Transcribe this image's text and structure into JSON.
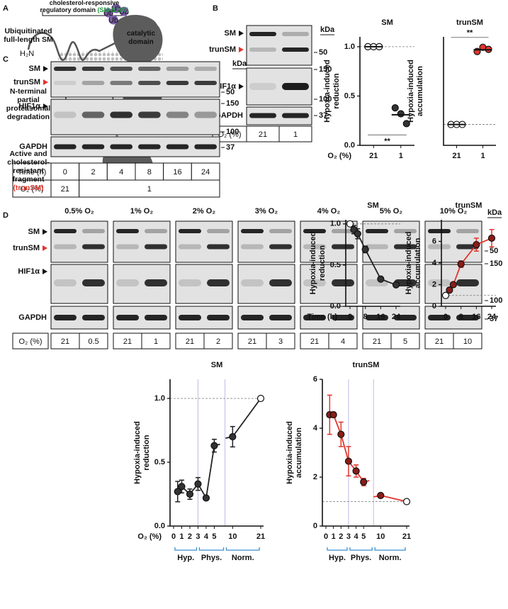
{
  "panels": {
    "A": {
      "letter": "A",
      "domain_label": "cholesterol-responsive regulatory domain",
      "domain_tag": "(SM-N100)",
      "catalytic": "catalytic domain",
      "steps": [
        "Ubiquitinated full-length SM",
        "N-terminal partial proteasomal degradation",
        "Active and cholesterol-resistant fragment"
      ],
      "fragment_tag": "(trunSM)",
      "nterm": "H₂N",
      "ub": "Ub"
    },
    "B": {
      "letter": "B",
      "bands": [
        "SM",
        "trunSM",
        "HIF1α",
        "GAPDH"
      ],
      "kda": "kDa",
      "markers": [
        "50",
        "150",
        "100",
        "37"
      ],
      "o2_label": "O₂ (%)",
      "lanes": [
        "21",
        "1"
      ]
    },
    "C": {
      "letter": "C",
      "bands": [
        "SM",
        "trunSM",
        "HIF1α",
        "GAPDH"
      ],
      "kda": "kDa",
      "markers": [
        "50",
        "150",
        "100",
        "37"
      ],
      "time_label": "Time (h)",
      "times": [
        "0",
        "2",
        "4",
        "8",
        "16",
        "24"
      ],
      "o2_label": "O₂ (%)",
      "o2_values": [
        "21",
        "1"
      ]
    },
    "D": {
      "letter": "D",
      "bands": [
        "SM",
        "trunSM",
        "HIF1α",
        "GAPDH"
      ],
      "kda": "kDa",
      "markers": [
        "50",
        "150",
        "100",
        "37"
      ],
      "o2_label": "O₂ (%)",
      "groups": [
        {
          "header": "0.5% O₂",
          "lanes": [
            "21",
            "0.5"
          ]
        },
        {
          "header": "1% O₂",
          "lanes": [
            "21",
            "1"
          ]
        },
        {
          "header": "2% O₂",
          "lanes": [
            "21",
            "2"
          ]
        },
        {
          "header": "3% O₂",
          "lanes": [
            "21",
            "3"
          ]
        },
        {
          "header": "4% O₂",
          "lanes": [
            "21",
            "4"
          ]
        },
        {
          "header": "5% O₂",
          "lanes": [
            "21",
            "5"
          ]
        },
        {
          "header": "10% O₂",
          "lanes": [
            "21",
            "10"
          ]
        }
      ]
    }
  },
  "chart_data": [
    {
      "type": "dot",
      "title": "SM",
      "ylabel": [
        "Hypoxia-induced",
        "reduction"
      ],
      "xlabel": "O₂ (%)",
      "categories": [
        "21",
        "1"
      ],
      "values": [
        [
          1,
          1,
          1
        ],
        [
          0.38,
          0.32,
          0.22
        ]
      ],
      "means": [
        1,
        0.31
      ],
      "color": "#333333",
      "ylim": [
        0,
        1.1
      ],
      "yticks": [
        {
          "value": 0,
          "label": "0.0"
        },
        {
          "value": 0.5,
          "label": "0.5"
        },
        {
          "value": 1,
          "label": "1.0"
        }
      ],
      "reference_line": 1,
      "annotation": "**"
    },
    {
      "type": "dot",
      "title": "trunSM",
      "ylabel": [
        "Hypoxia-induced",
        "accumulation"
      ],
      "categories": [
        "21",
        "1"
      ],
      "values": [
        [
          1,
          1,
          1
        ],
        [
          4.5,
          4.7,
          4.6
        ]
      ],
      "means": [
        1,
        4.58
      ],
      "color": "#e2352d",
      "ylim": [
        0,
        5.2
      ],
      "reference_line": 1,
      "annotation": "**"
    },
    {
      "type": "line",
      "title": "SM",
      "ylabel": [
        "Hypoxia-induced",
        "reduction"
      ],
      "xlabel": "Time (h)",
      "x": [
        0,
        2,
        4,
        8,
        16,
        24
      ],
      "values": [
        1,
        0.93,
        0.88,
        0.69,
        0.33,
        0.26
      ],
      "errors": [
        0,
        0.05,
        0.06,
        0.04,
        0.01,
        0.01
      ],
      "color": "#222222",
      "xlim": [
        0,
        24
      ],
      "xticks": [
        0,
        8,
        16,
        24
      ],
      "ylim": [
        0,
        1.05
      ],
      "yticks": [
        {
          "value": 0,
          "label": "0.0"
        },
        {
          "value": 0.5,
          "label": "0.5"
        },
        {
          "value": 1,
          "label": "1.0"
        }
      ],
      "reference_line": 1
    },
    {
      "type": "line",
      "title": "trunSM",
      "ylabel": [
        "Hypoxia-induced",
        "accumulation"
      ],
      "x": [
        0,
        2,
        4,
        8,
        16,
        24
      ],
      "values": [
        1,
        1.5,
        2.0,
        3.9,
        5.7,
        6.3
      ],
      "errors": [
        0,
        0.1,
        0.1,
        0.3,
        0.6,
        0.8
      ],
      "color": "#e2352d",
      "xlim": [
        0,
        24
      ],
      "xticks": [
        0,
        8,
        16,
        24
      ],
      "ylim": [
        0,
        8
      ],
      "yticks": [
        0,
        2,
        4,
        6
      ],
      "reference_line": 1
    },
    {
      "type": "line",
      "title": "SM",
      "ylabel": [
        "Hypoxia-induced",
        "reduction"
      ],
      "xlabel": "O₂ (%)",
      "x": [
        0.5,
        1,
        2,
        3,
        4,
        5,
        10,
        21
      ],
      "values": [
        0.27,
        0.31,
        0.25,
        0.33,
        0.22,
        0.63,
        0.7,
        1.0
      ],
      "errors": [
        0.08,
        0.05,
        0.04,
        0.05,
        0,
        0.05,
        0.08,
        0
      ],
      "color": "#222222",
      "xlim": [
        0,
        21
      ],
      "xticks": [
        0,
        1,
        2,
        3,
        4,
        5,
        10,
        21
      ],
      "ylim": [
        0,
        1.15
      ],
      "yticks": [
        {
          "value": 0,
          "label": "0.0"
        },
        {
          "value": 0.5,
          "label": "0.5"
        },
        {
          "value": 1,
          "label": "1.0"
        }
      ],
      "reference_line": 1,
      "regions": [
        {
          "label": "Hyp.",
          "from": 0,
          "to": 3
        },
        {
          "label": "Phys.",
          "from": 3,
          "to": 7
        },
        {
          "label": "Norm.",
          "from": 7,
          "to": 21
        }
      ]
    },
    {
      "type": "line",
      "title": "trunSM",
      "ylabel": [
        "Hypoxia-induced",
        "accumulation"
      ],
      "x": [
        0.5,
        1,
        2,
        3,
        4,
        5,
        10,
        21
      ],
      "values": [
        4.55,
        4.55,
        3.75,
        2.65,
        2.25,
        1.8,
        1.25,
        1.0
      ],
      "errors": [
        0.8,
        0.1,
        0.5,
        0.6,
        0.25,
        0.15,
        0.05,
        0
      ],
      "color": "#e2352d",
      "xlim": [
        0,
        21
      ],
      "xticks": [
        0,
        1,
        2,
        3,
        4,
        5,
        10,
        21
      ],
      "ylim": [
        0,
        6
      ],
      "yticks": [
        0,
        2,
        4,
        6
      ],
      "reference_line": 1,
      "regions": [
        {
          "label": "Hyp.",
          "from": 0,
          "to": 3
        },
        {
          "label": "Phys.",
          "from": 3,
          "to": 7
        },
        {
          "label": "Norm.",
          "from": 7,
          "to": 21
        }
      ]
    }
  ]
}
